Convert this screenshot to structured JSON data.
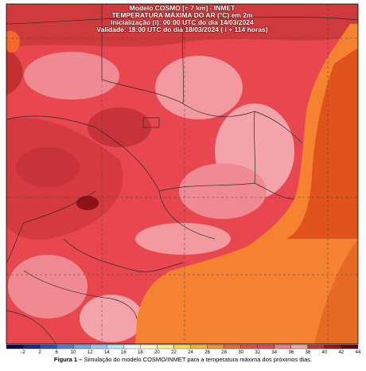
{
  "header": {
    "lines": [
      "Modelo COSMO [≈ 7 km] - INMET",
      "TEMPERATURA MÁXIMA DO AR (°C) em 2m",
      "Inicialização (i): 00:00 UTC do dia 14/03/2024",
      "Validade: 18:00 UTC do dia 18/03/2024 ( i + 114 horas)"
    ]
  },
  "colorbar": {
    "labels": [
      "-2",
      "2",
      "6",
      "10",
      "12",
      "14",
      "16",
      "18",
      "20",
      "22",
      "24",
      "26",
      "28",
      "30",
      "32",
      "34",
      "36",
      "38",
      "40",
      "42",
      "44"
    ],
    "colors": [
      "#0a0a5a",
      "#1c2a8c",
      "#2f50b8",
      "#4f7fd6",
      "#6fa8e8",
      "#8fcbf2",
      "#b3ecf6",
      "#e6f9f0",
      "#fffbc8",
      "#fff08a",
      "#ffd84a",
      "#ffb52e",
      "#ff8f2a",
      "#f5682a",
      "#f04a3a",
      "#e8474f",
      "#f07a86",
      "#f3a3aa",
      "#c8323a",
      "#a0161c",
      "#6a0a0e"
    ]
  },
  "caption": {
    "label": "Figura 1 –",
    "text": "Simulação do modelo COSMO/INMET para a temperatura máxima dos próximos dias."
  }
}
